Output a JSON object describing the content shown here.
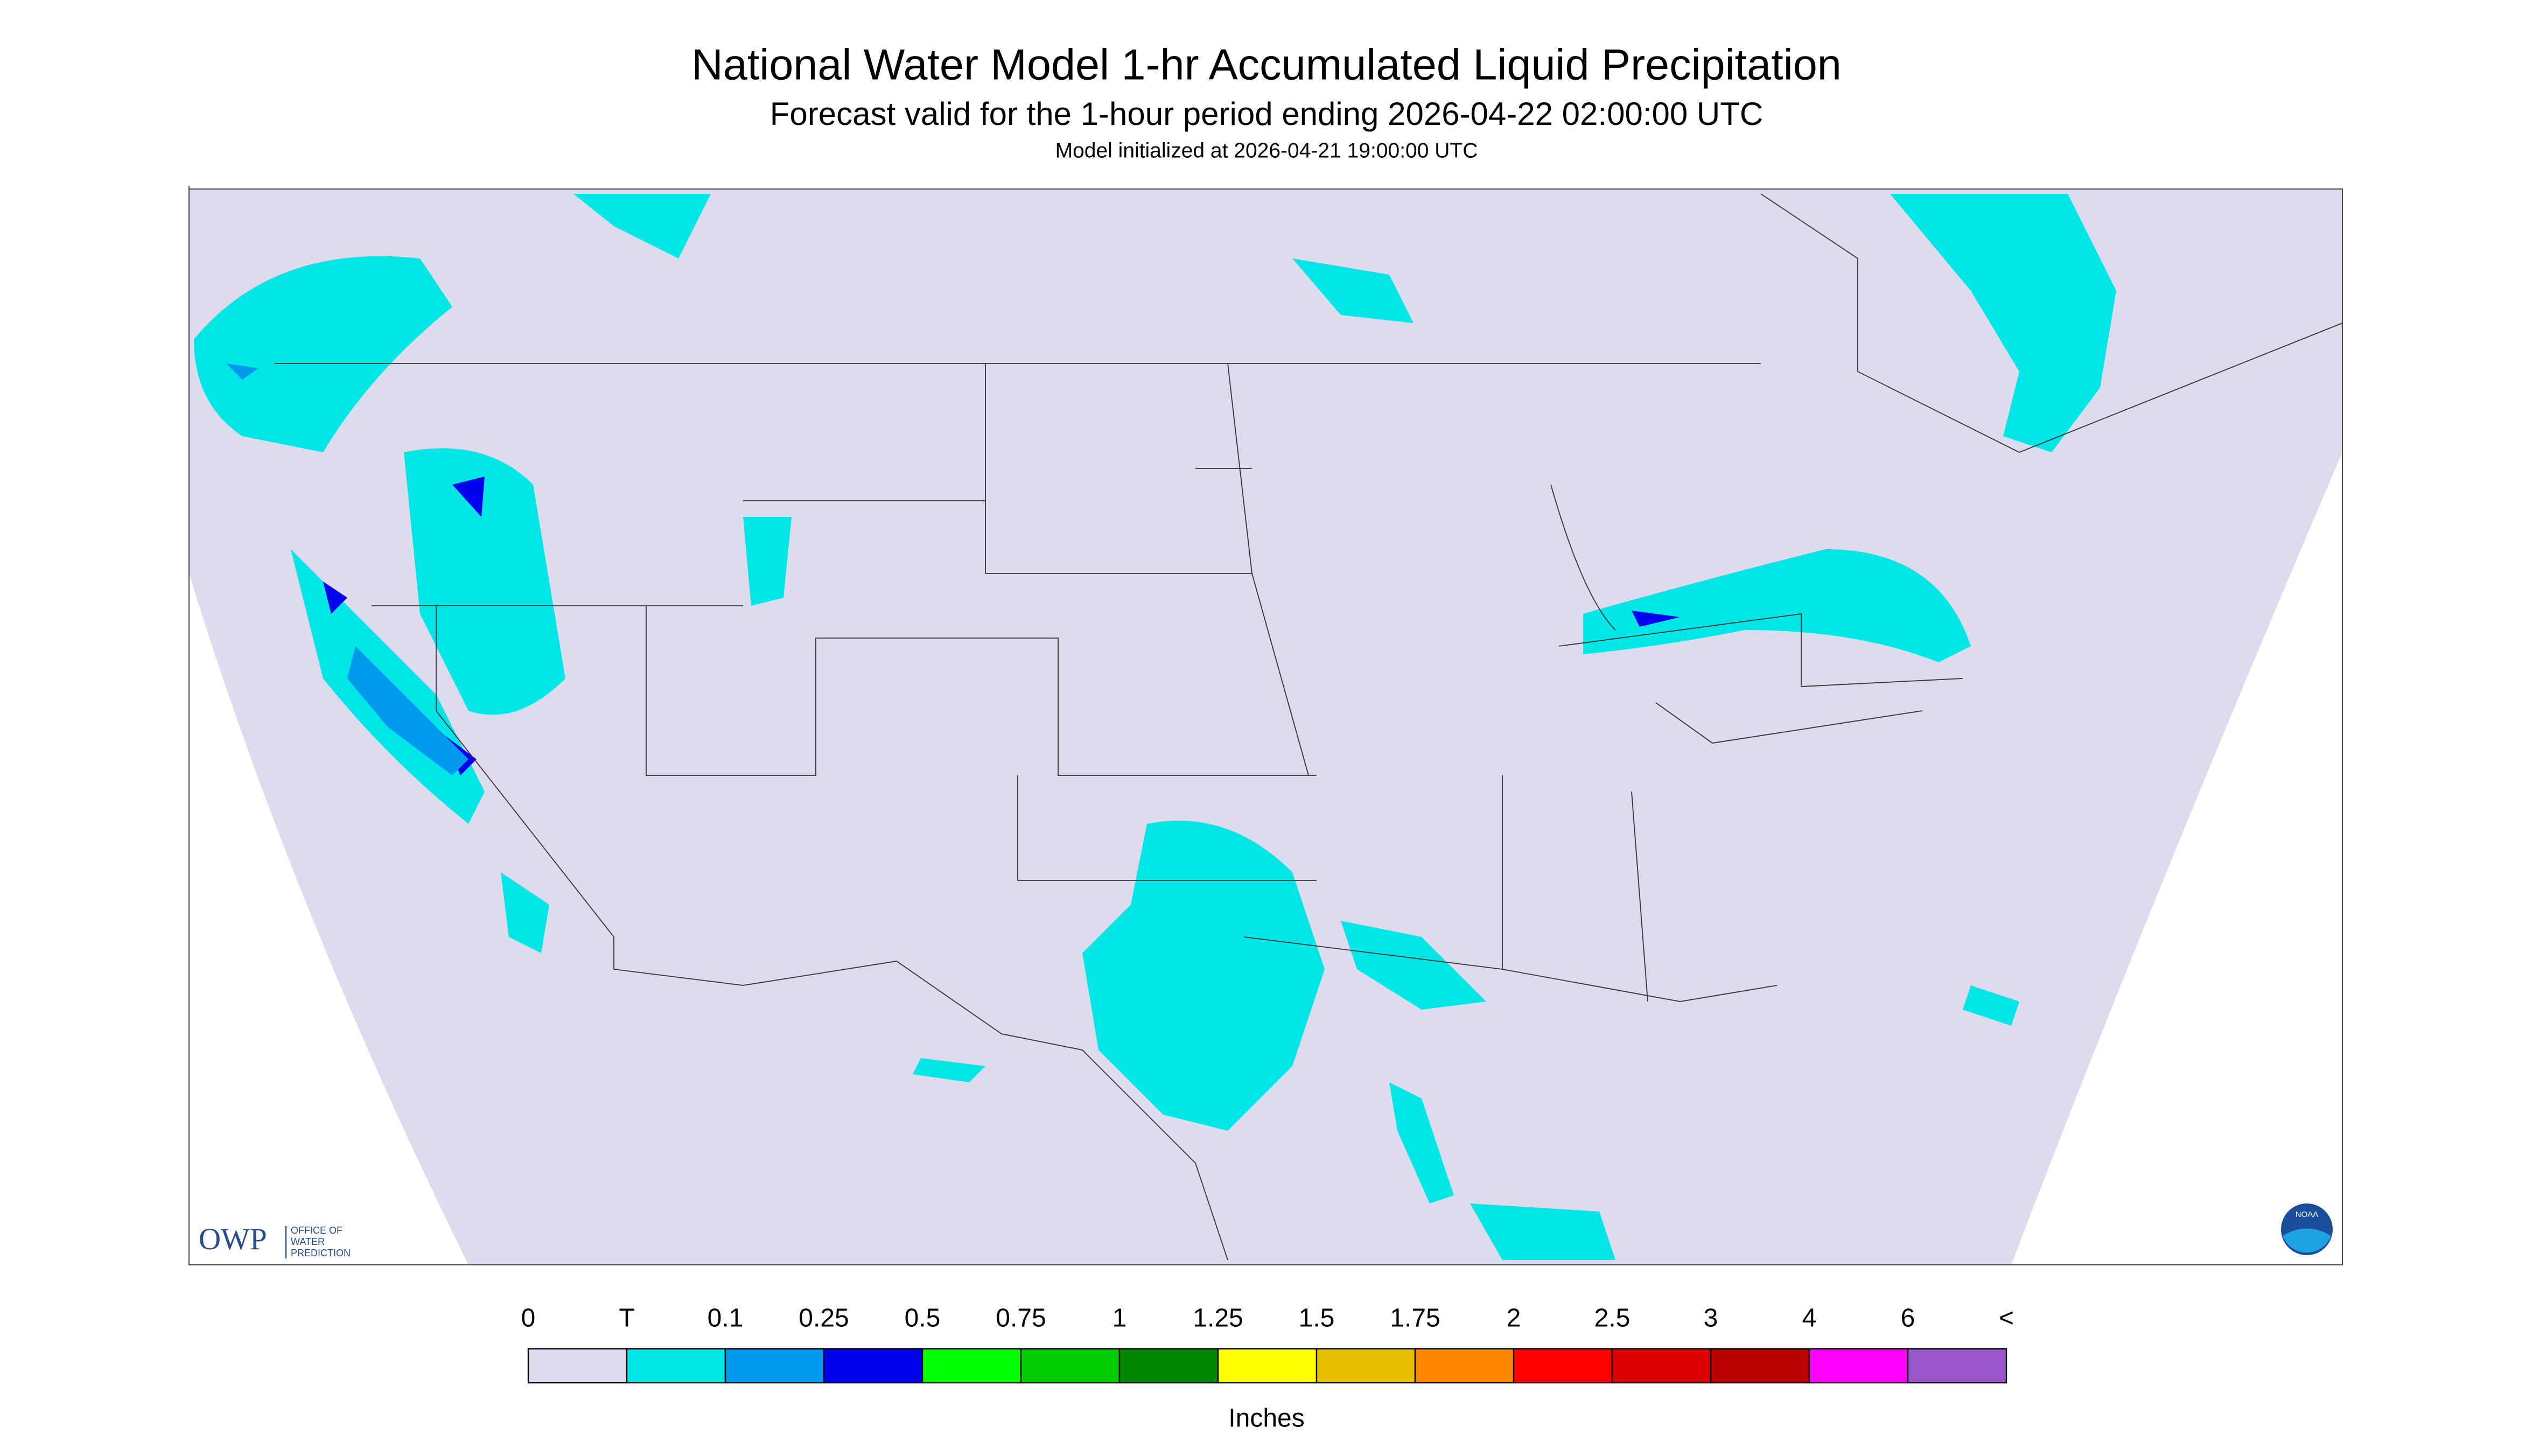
{
  "header": {
    "title": "National Water Model 1-hr Accumulated Liquid Precipitation",
    "subtitle": "Forecast valid for the 1-hour period ending 2026-04-22 02:00:00 UTC",
    "init": "Model initialized at 2026-04-21 19:00:00 UTC"
  },
  "logo": {
    "owp": "OWP",
    "office": [
      "OFFICE OF",
      "WATER",
      "PREDICTION"
    ],
    "noaa": "NOAA"
  },
  "legend": {
    "labels": [
      "0",
      "T",
      "0.1",
      "0.25",
      "0.5",
      "0.75",
      "1",
      "1.25",
      "1.5",
      "1.75",
      "2",
      "2.5",
      "3",
      "4",
      "6",
      "<"
    ],
    "colors": [
      "#dcdcee",
      "#00e5e5",
      "#0099ee",
      "#0000ee",
      "#00ff00",
      "#00cc00",
      "#008800",
      "#ffff00",
      "#e5bf00",
      "#ff8800",
      "#ff0000",
      "#dd0000",
      "#bb0000",
      "#ff00ff",
      "#9955cc"
    ],
    "units": "Inches"
  }
}
